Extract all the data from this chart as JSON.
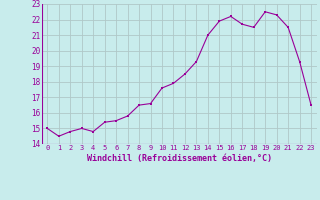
{
  "x": [
    0,
    1,
    2,
    3,
    4,
    5,
    6,
    7,
    8,
    9,
    10,
    11,
    12,
    13,
    14,
    15,
    16,
    17,
    18,
    19,
    20,
    21,
    22,
    23
  ],
  "y": [
    15.0,
    14.5,
    14.8,
    15.0,
    14.8,
    15.4,
    15.5,
    15.8,
    16.5,
    16.6,
    17.6,
    17.9,
    18.5,
    19.3,
    21.0,
    21.9,
    22.2,
    21.7,
    21.5,
    22.5,
    22.3,
    21.5,
    19.3,
    16.5
  ],
  "background_color": "#c8ecec",
  "line_color": "#990099",
  "marker_color": "#990099",
  "grid_color": "#b0c8c8",
  "xlabel": "Windchill (Refroidissement éolien,°C)",
  "xlabel_color": "#990099",
  "tick_color": "#990099",
  "ylim": [
    14,
    23
  ],
  "xlim": [
    -0.5,
    23.5
  ],
  "yticks": [
    14,
    15,
    16,
    17,
    18,
    19,
    20,
    21,
    22,
    23
  ],
  "xticks": [
    0,
    1,
    2,
    3,
    4,
    5,
    6,
    7,
    8,
    9,
    10,
    11,
    12,
    13,
    14,
    15,
    16,
    17,
    18,
    19,
    20,
    21,
    22,
    23
  ]
}
